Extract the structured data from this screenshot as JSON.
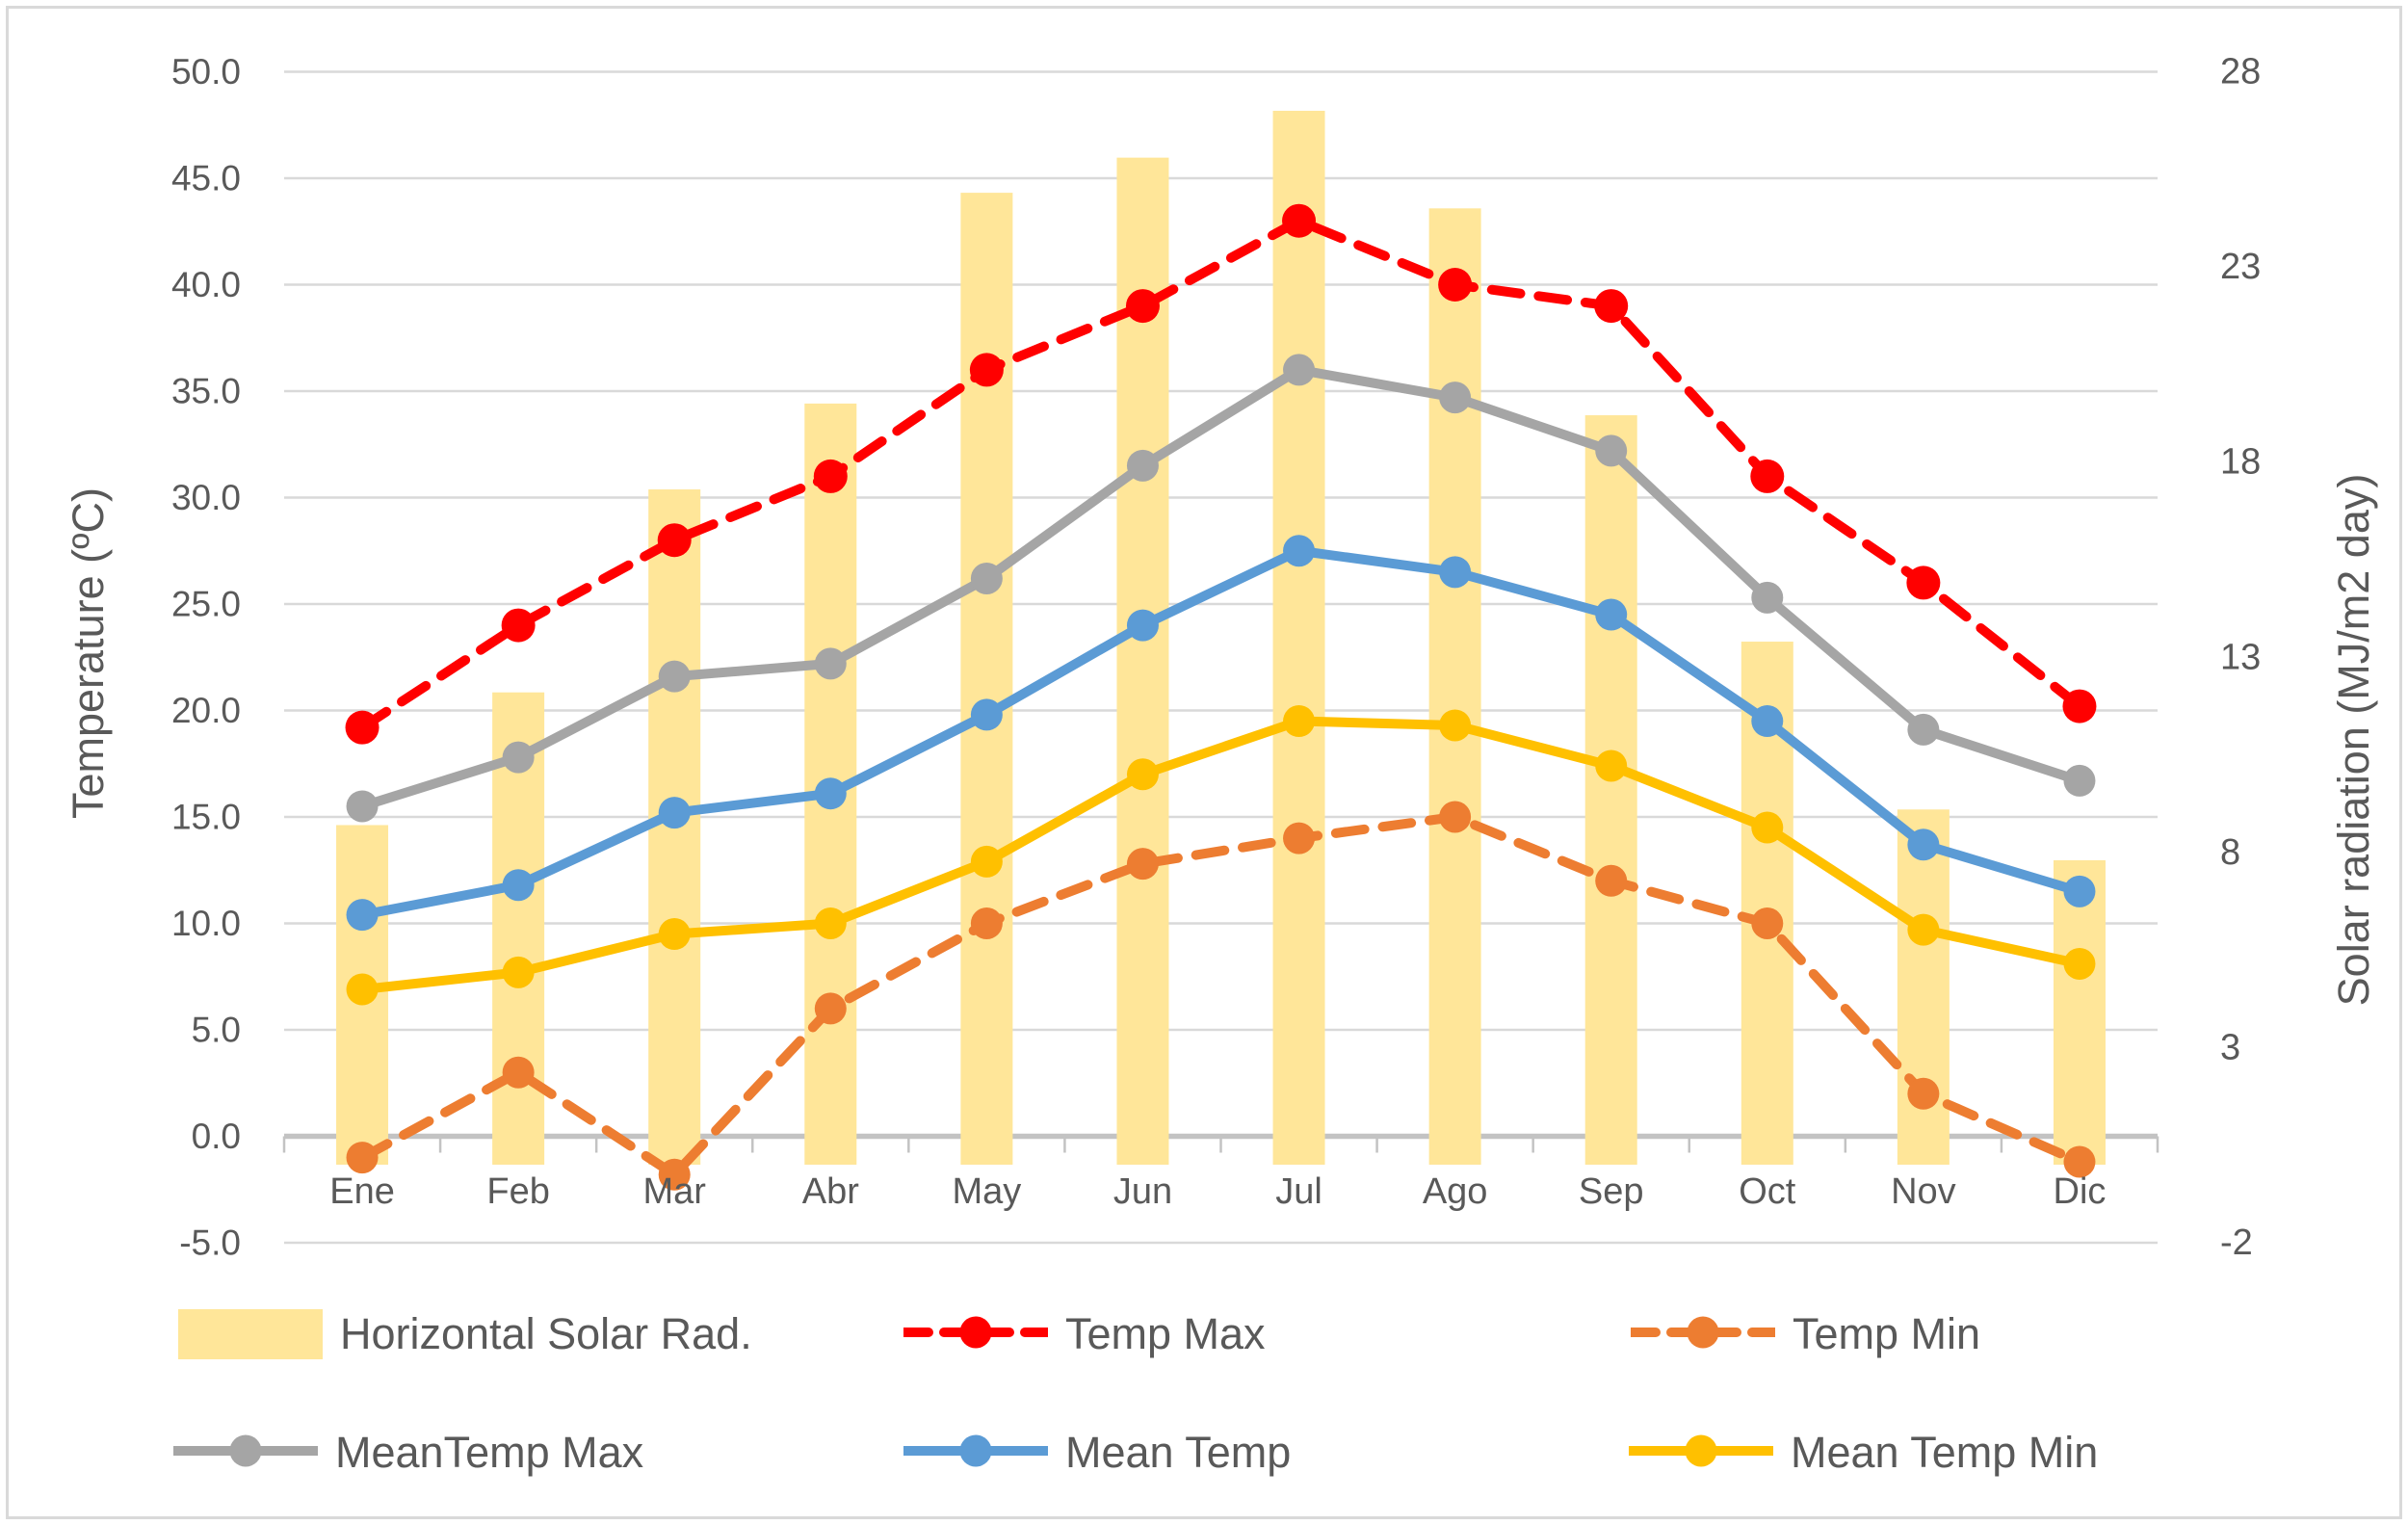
{
  "figure": {
    "background": "#FFFFFF",
    "border_color": "#D9D9D9",
    "text_color": "#595959",
    "gridline_color": "#D9D9D9",
    "axis_line_color": "#C3C3C3"
  },
  "left_axis": {
    "title": "Temperature (ºC)",
    "min": -5,
    "max": 50,
    "step": 5,
    "tick_labels": [
      "50.0",
      "45.0",
      "40.0",
      "35.0",
      "30.0",
      "25.0",
      "20.0",
      "15.0",
      "10.0",
      "5.0",
      "0.0",
      "-5.0"
    ]
  },
  "right_axis": {
    "title": "Solar radiation (MJ/m2 day)",
    "min": -2,
    "max": 28,
    "step": 5,
    "tick_labels": [
      "28",
      "23",
      "18",
      "13",
      "8",
      "3",
      "-2"
    ]
  },
  "x_axis": {
    "months": [
      "Ene",
      "Feb",
      "Mar",
      "Abr",
      "May",
      "Jun",
      "Jul",
      "Ago",
      "Sep",
      "Oct",
      "Nov",
      "Dic"
    ]
  },
  "legend": {
    "items": [
      {
        "label": "Horizontal Solar Rad.",
        "marker": "swatch",
        "color": "#FFE699"
      },
      {
        "label": "Temp Max",
        "marker": "dash-dot",
        "color": "#FF0000"
      },
      {
        "label": "Temp Min",
        "marker": "dash-dot",
        "color": "#ED7D31"
      },
      {
        "label": "MeanTemp Max",
        "marker": "line-dot",
        "color": "#A5A5A5"
      },
      {
        "label": "Mean Temp",
        "marker": "line-dot",
        "color": "#5B9BD5"
      },
      {
        "label": "Mean Temp Min",
        "marker": "line-dot",
        "color": "#FFC000"
      }
    ]
  },
  "chart_data": {
    "type": "combo",
    "categories": [
      "Ene",
      "Feb",
      "Mar",
      "Abr",
      "May",
      "Jun",
      "Jul",
      "Ago",
      "Sep",
      "Oct",
      "Nov",
      "Dic"
    ],
    "bar_series": {
      "name": "Horizontal Solar Rad.",
      "axis": "right",
      "color": "#FFE699",
      "values": [
        8.7,
        12.1,
        17.3,
        19.5,
        24.9,
        25.8,
        27.0,
        24.5,
        19.2,
        13.4,
        9.1,
        7.8
      ]
    },
    "line_series": [
      {
        "name": "Temp Max",
        "axis": "left",
        "color": "#FF0000",
        "style": "dashed",
        "values": [
          19.2,
          24.0,
          28.0,
          31.0,
          36.0,
          39.0,
          43.0,
          40.0,
          39.0,
          31.0,
          26.0,
          20.2
        ]
      },
      {
        "name": "Temp Min",
        "axis": "left",
        "color": "#ED7D31",
        "style": "dashed",
        "values": [
          -1.0,
          3.0,
          -1.8,
          6.0,
          10.0,
          12.8,
          14.0,
          15.0,
          12.0,
          10.0,
          2.0,
          -1.2
        ]
      },
      {
        "name": "MeanTemp Max",
        "axis": "left",
        "color": "#A5A5A5",
        "style": "solid",
        "values": [
          15.5,
          17.8,
          21.6,
          22.2,
          26.2,
          31.5,
          36.0,
          34.7,
          32.2,
          25.3,
          19.1,
          16.7
        ]
      },
      {
        "name": "Mean Temp",
        "axis": "left",
        "color": "#5B9BD5",
        "style": "solid",
        "values": [
          10.4,
          11.8,
          15.2,
          16.1,
          19.8,
          24.0,
          27.5,
          26.5,
          24.5,
          19.5,
          13.7,
          11.5
        ]
      },
      {
        "name": "Mean Temp Min",
        "axis": "left",
        "color": "#FFC000",
        "style": "solid",
        "values": [
          6.9,
          7.7,
          9.5,
          10.0,
          12.9,
          17.0,
          19.5,
          19.3,
          17.4,
          14.5,
          9.7,
          8.1
        ]
      }
    ],
    "left_axis_range": [
      -5,
      50
    ],
    "right_axis_range": [
      -2,
      28
    ],
    "grid": true,
    "legend_position": "bottom"
  }
}
